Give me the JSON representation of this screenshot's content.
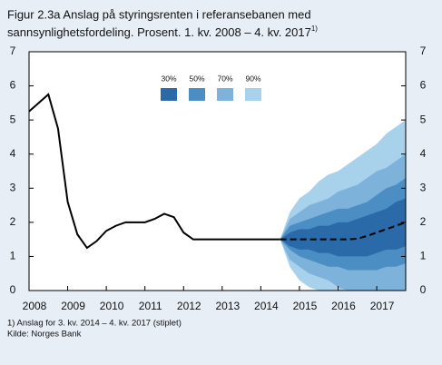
{
  "chart_data": {
    "type": "fan",
    "title_line1": "Figur 2.3a Anslag på styringsrenten i referansebanen med",
    "title_line2": "sannsynlighetsfordeling. Prosent. 1. kv. 2008 – 4. kv. 2017",
    "title_note": "1)",
    "footnote": "1) Anslag for 3. kv. 2014 – 4. kv. 2017 (stiplet)",
    "source": "Kilde: Norges Bank",
    "xlim": [
      2008,
      2017.75
    ],
    "xticks": [
      2008,
      2009,
      2010,
      2011,
      2012,
      2013,
      2014,
      2015,
      2016,
      2017
    ],
    "ylim": [
      0,
      7
    ],
    "yticks": [
      0,
      1,
      2,
      3,
      4,
      5,
      6,
      7
    ],
    "line_color": "#000000",
    "history": {
      "x": [
        2008,
        2008.25,
        2008.5,
        2008.75,
        2009,
        2009.25,
        2009.5,
        2009.75,
        2010,
        2010.25,
        2010.5,
        2010.75,
        2011,
        2011.25,
        2011.5,
        2011.75,
        2012,
        2012.25,
        2012.5,
        2012.75,
        2013,
        2013.25,
        2013.5,
        2013.75,
        2014,
        2014.25,
        2014.5
      ],
      "values": [
        5.25,
        5.5,
        5.75,
        4.75,
        2.6,
        1.65,
        1.25,
        1.45,
        1.75,
        1.9,
        2.0,
        2.0,
        2.0,
        2.1,
        2.25,
        2.15,
        1.7,
        1.5,
        1.5,
        1.5,
        1.5,
        1.5,
        1.5,
        1.5,
        1.5,
        1.5,
        1.5
      ]
    },
    "fan_x": [
      2014.5,
      2014.75,
      2015,
      2015.25,
      2015.5,
      2015.75,
      2016,
      2016.25,
      2016.5,
      2016.75,
      2017,
      2017.25,
      2017.5,
      2017.75
    ],
    "forecast": [
      1.5,
      1.5,
      1.5,
      1.5,
      1.5,
      1.5,
      1.5,
      1.5,
      1.52,
      1.6,
      1.7,
      1.8,
      1.9,
      2.0
    ],
    "bands": [
      {
        "name": "30%",
        "color": "#2a6aa8",
        "upper": [
          1.5,
          1.7,
          1.8,
          1.8,
          1.9,
          1.9,
          2.0,
          2.0,
          2.1,
          2.2,
          2.3,
          2.4,
          2.6,
          2.7
        ],
        "lower": [
          1.5,
          1.3,
          1.2,
          1.2,
          1.1,
          1.1,
          1.0,
          1.0,
          1.0,
          1.0,
          1.1,
          1.2,
          1.2,
          1.3
        ]
      },
      {
        "name": "50%",
        "color": "#4b8ec4",
        "upper": [
          1.5,
          1.9,
          2.0,
          2.1,
          2.2,
          2.3,
          2.4,
          2.4,
          2.5,
          2.6,
          2.8,
          3.0,
          3.1,
          3.3
        ],
        "lower": [
          1.5,
          1.2,
          1.0,
          0.9,
          0.8,
          0.7,
          0.7,
          0.6,
          0.6,
          0.6,
          0.6,
          0.7,
          0.7,
          0.8
        ]
      },
      {
        "name": "70%",
        "color": "#7db3da",
        "upper": [
          1.5,
          2.1,
          2.3,
          2.5,
          2.6,
          2.7,
          2.9,
          3.0,
          3.1,
          3.3,
          3.5,
          3.6,
          3.8,
          4.0
        ],
        "lower": [
          1.5,
          0.9,
          0.7,
          0.5,
          0.4,
          0.3,
          0.1,
          0,
          0,
          0,
          0,
          0,
          0,
          0
        ]
      },
      {
        "name": "90%",
        "color": "#a8d1ec",
        "upper": [
          1.5,
          2.3,
          2.7,
          2.9,
          3.2,
          3.4,
          3.5,
          3.7,
          3.9,
          4.1,
          4.3,
          4.6,
          4.8,
          5.0
        ],
        "lower": [
          1.5,
          0.7,
          0.3,
          0.1,
          0,
          0,
          0,
          0,
          0,
          0,
          0,
          0,
          0,
          0
        ]
      }
    ]
  }
}
